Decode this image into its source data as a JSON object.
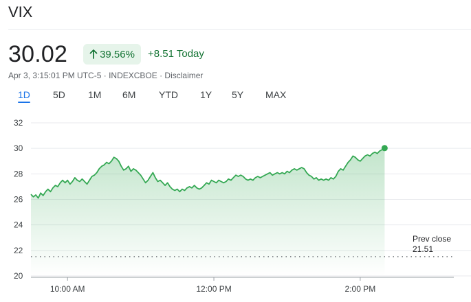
{
  "header": {
    "ticker": "VIX",
    "price": "30.02",
    "change_percent": "39.56%",
    "change_today": "+8.51 Today",
    "timestamp": "Apr 3, 3:15:01 PM UTC-5",
    "exchange": "INDEXCBOE",
    "separator": " · ",
    "disclaimer": "Disclaimer",
    "trend_icon": "arrow-up-icon",
    "accent_color": "#137333",
    "badge_bg": "#e6f4ea"
  },
  "tabs": [
    {
      "label": "1D",
      "active": true
    },
    {
      "label": "5D",
      "active": false
    },
    {
      "label": "1M",
      "active": false
    },
    {
      "label": "6M",
      "active": false
    },
    {
      "label": "YTD",
      "active": false
    },
    {
      "label": "1Y",
      "active": false
    },
    {
      "label": "5Y",
      "active": false
    },
    {
      "label": "MAX",
      "active": false
    }
  ],
  "chart_data": {
    "type": "area",
    "x_range": [
      "09:30",
      "15:15"
    ],
    "ylim": [
      20,
      32
    ],
    "y_ticks": [
      "32",
      "30",
      "28",
      "26",
      "24",
      "22",
      "20"
    ],
    "x_ticks": [
      {
        "label": "10:00 AM",
        "time": "10:00"
      },
      {
        "label": "12:00 PM",
        "time": "12:00"
      },
      {
        "label": "2:00 PM",
        "time": "14:00"
      }
    ],
    "grid": true,
    "line_color": "#34a853",
    "prev_close": {
      "label": "Prev close",
      "value": "21.51"
    },
    "series": [
      {
        "points": [
          [
            "09:30",
            26.4
          ],
          [
            "09:32",
            26.2
          ],
          [
            "09:34",
            26.35
          ],
          [
            "09:36",
            26.1
          ],
          [
            "09:38",
            26.5
          ],
          [
            "09:40",
            26.3
          ],
          [
            "09:42",
            26.6
          ],
          [
            "09:44",
            26.8
          ],
          [
            "09:46",
            26.6
          ],
          [
            "09:48",
            26.9
          ],
          [
            "09:50",
            27.1
          ],
          [
            "09:52",
            27.0
          ],
          [
            "09:54",
            27.3
          ],
          [
            "09:56",
            27.5
          ],
          [
            "09:58",
            27.3
          ],
          [
            "10:00",
            27.5
          ],
          [
            "10:02",
            27.2
          ],
          [
            "10:04",
            27.4
          ],
          [
            "10:06",
            27.7
          ],
          [
            "10:08",
            27.5
          ],
          [
            "10:10",
            27.4
          ],
          [
            "10:12",
            27.6
          ],
          [
            "10:14",
            27.4
          ],
          [
            "10:16",
            27.2
          ],
          [
            "10:18",
            27.5
          ],
          [
            "10:20",
            27.8
          ],
          [
            "10:22",
            27.9
          ],
          [
            "10:24",
            28.1
          ],
          [
            "10:26",
            28.4
          ],
          [
            "10:28",
            28.6
          ],
          [
            "10:30",
            28.7
          ],
          [
            "10:32",
            28.9
          ],
          [
            "10:34",
            28.8
          ],
          [
            "10:36",
            29.0
          ],
          [
            "10:38",
            29.3
          ],
          [
            "10:40",
            29.2
          ],
          [
            "10:42",
            29.0
          ],
          [
            "10:44",
            28.6
          ],
          [
            "10:46",
            28.3
          ],
          [
            "10:48",
            28.4
          ],
          [
            "10:50",
            28.6
          ],
          [
            "10:52",
            28.2
          ],
          [
            "10:54",
            28.4
          ],
          [
            "10:56",
            28.3
          ],
          [
            "10:58",
            28.1
          ],
          [
            "11:00",
            27.9
          ],
          [
            "11:02",
            27.6
          ],
          [
            "11:04",
            27.3
          ],
          [
            "11:06",
            27.5
          ],
          [
            "11:08",
            27.8
          ],
          [
            "11:10",
            28.1
          ],
          [
            "11:12",
            27.7
          ],
          [
            "11:14",
            27.4
          ],
          [
            "11:16",
            27.5
          ],
          [
            "11:18",
            27.3
          ],
          [
            "11:20",
            27.1
          ],
          [
            "11:22",
            27.3
          ],
          [
            "11:24",
            27.0
          ],
          [
            "11:26",
            26.8
          ],
          [
            "11:28",
            26.7
          ],
          [
            "11:30",
            26.8
          ],
          [
            "11:32",
            26.6
          ],
          [
            "11:34",
            26.8
          ],
          [
            "11:36",
            26.7
          ],
          [
            "11:38",
            26.9
          ],
          [
            "11:40",
            27.0
          ],
          [
            "11:42",
            26.9
          ],
          [
            "11:44",
            27.1
          ],
          [
            "11:46",
            26.9
          ],
          [
            "11:48",
            26.8
          ],
          [
            "11:50",
            26.9
          ],
          [
            "11:52",
            27.1
          ],
          [
            "11:54",
            27.3
          ],
          [
            "11:56",
            27.2
          ],
          [
            "11:58",
            27.5
          ],
          [
            "12:00",
            27.4
          ],
          [
            "12:02",
            27.3
          ],
          [
            "12:04",
            27.5
          ],
          [
            "12:06",
            27.4
          ],
          [
            "12:08",
            27.3
          ],
          [
            "12:10",
            27.4
          ],
          [
            "12:12",
            27.6
          ],
          [
            "12:14",
            27.5
          ],
          [
            "12:16",
            27.7
          ],
          [
            "12:18",
            27.9
          ],
          [
            "12:20",
            27.8
          ],
          [
            "12:22",
            27.9
          ],
          [
            "12:24",
            27.8
          ],
          [
            "12:26",
            27.6
          ],
          [
            "12:28",
            27.5
          ],
          [
            "12:30",
            27.6
          ],
          [
            "12:32",
            27.5
          ],
          [
            "12:34",
            27.7
          ],
          [
            "12:36",
            27.8
          ],
          [
            "12:38",
            27.7
          ],
          [
            "12:40",
            27.8
          ],
          [
            "12:42",
            27.9
          ],
          [
            "12:44",
            28.0
          ],
          [
            "12:46",
            28.1
          ],
          [
            "12:48",
            27.9
          ],
          [
            "12:50",
            28.0
          ],
          [
            "12:52",
            28.1
          ],
          [
            "12:54",
            28.0
          ],
          [
            "12:56",
            28.1
          ],
          [
            "12:58",
            28.0
          ],
          [
            "13:00",
            28.2
          ],
          [
            "13:02",
            28.1
          ],
          [
            "13:04",
            28.3
          ],
          [
            "13:06",
            28.4
          ],
          [
            "13:08",
            28.3
          ],
          [
            "13:10",
            28.4
          ],
          [
            "13:12",
            28.5
          ],
          [
            "13:14",
            28.4
          ],
          [
            "13:16",
            28.1
          ],
          [
            "13:18",
            27.9
          ],
          [
            "13:20",
            27.8
          ],
          [
            "13:22",
            27.6
          ],
          [
            "13:24",
            27.7
          ],
          [
            "13:26",
            27.5
          ],
          [
            "13:28",
            27.6
          ],
          [
            "13:30",
            27.5
          ],
          [
            "13:32",
            27.6
          ],
          [
            "13:34",
            27.5
          ],
          [
            "13:36",
            27.7
          ],
          [
            "13:38",
            27.6
          ],
          [
            "13:40",
            27.8
          ],
          [
            "13:42",
            28.2
          ],
          [
            "13:44",
            28.4
          ],
          [
            "13:46",
            28.3
          ],
          [
            "13:48",
            28.6
          ],
          [
            "13:50",
            28.9
          ],
          [
            "13:52",
            29.1
          ],
          [
            "13:54",
            29.4
          ],
          [
            "13:56",
            29.3
          ],
          [
            "13:58",
            29.1
          ],
          [
            "14:00",
            29.0
          ],
          [
            "14:02",
            29.2
          ],
          [
            "14:04",
            29.4
          ],
          [
            "14:06",
            29.5
          ],
          [
            "14:08",
            29.4
          ],
          [
            "14:10",
            29.6
          ],
          [
            "14:12",
            29.7
          ],
          [
            "14:14",
            29.6
          ],
          [
            "14:16",
            29.8
          ],
          [
            "14:18",
            29.9
          ],
          [
            "14:20",
            30.02
          ]
        ]
      }
    ]
  }
}
